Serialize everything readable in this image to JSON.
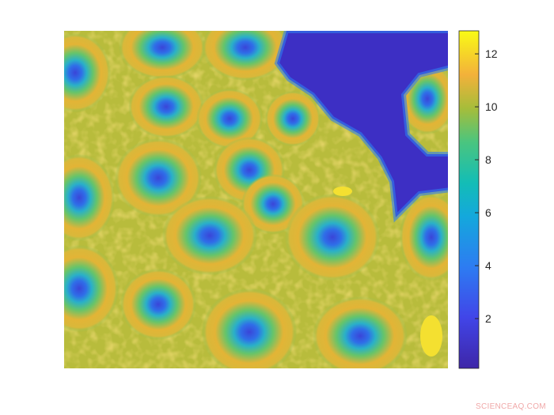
{
  "chart_data": {
    "type": "heatmap",
    "title": "",
    "xlabel": "",
    "ylabel": "",
    "colormap": "parula",
    "colorbar": {
      "clim": [
        0.12,
        12.87
      ],
      "ticks": [
        2,
        4,
        6,
        8,
        10,
        12
      ],
      "tick_labels": [
        "2",
        "4",
        "6",
        "8",
        "10",
        "12"
      ],
      "placement": "right"
    },
    "axes_ticks_visible": false,
    "grid": false
  },
  "colors": {
    "low": "#3e26a8",
    "mid": "#12beb9",
    "high": "#f9fb15"
  },
  "watermark": "SCIENCEAQ.COM"
}
